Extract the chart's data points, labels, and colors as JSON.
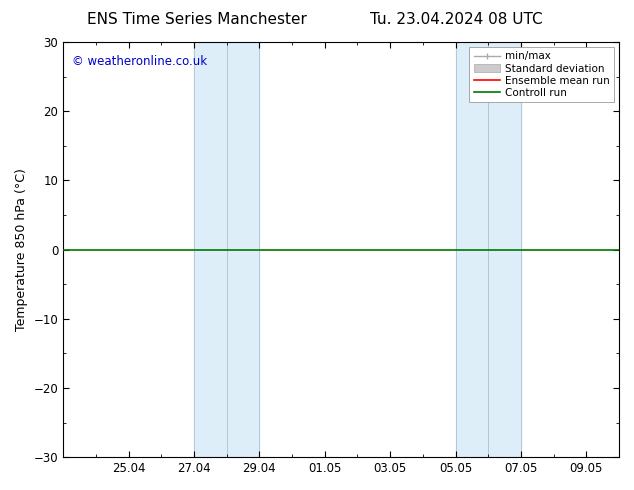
{
  "title_left": "ENS Time Series Manchester",
  "title_right": "Tu. 23.04.2024 08 UTC",
  "ylabel": "Temperature 850 hPa (°C)",
  "ylim": [
    -30,
    30
  ],
  "yticks": [
    -30,
    -20,
    -10,
    0,
    10,
    20,
    30
  ],
  "xtick_labels": [
    "25.04",
    "27.04",
    "29.04",
    "01.05",
    "03.05",
    "05.05",
    "07.05",
    "09.05"
  ],
  "shaded_color": "#ddeef8",
  "background_color": "#ffffff",
  "control_run_color": "#007700",
  "ensemble_mean_color": "#ff0000",
  "watermark_text": "© weatheronline.co.uk",
  "watermark_color": "#0000cc",
  "legend_items": [
    {
      "label": "min/max",
      "color": "#999999"
    },
    {
      "label": "Standard deviation",
      "color": "#cccccc"
    },
    {
      "label": "Ensemble mean run",
      "color": "#ff0000"
    },
    {
      "label": "Controll run",
      "color": "#007700"
    }
  ],
  "title_fontsize": 11,
  "axis_fontsize": 9,
  "tick_fontsize": 8.5
}
